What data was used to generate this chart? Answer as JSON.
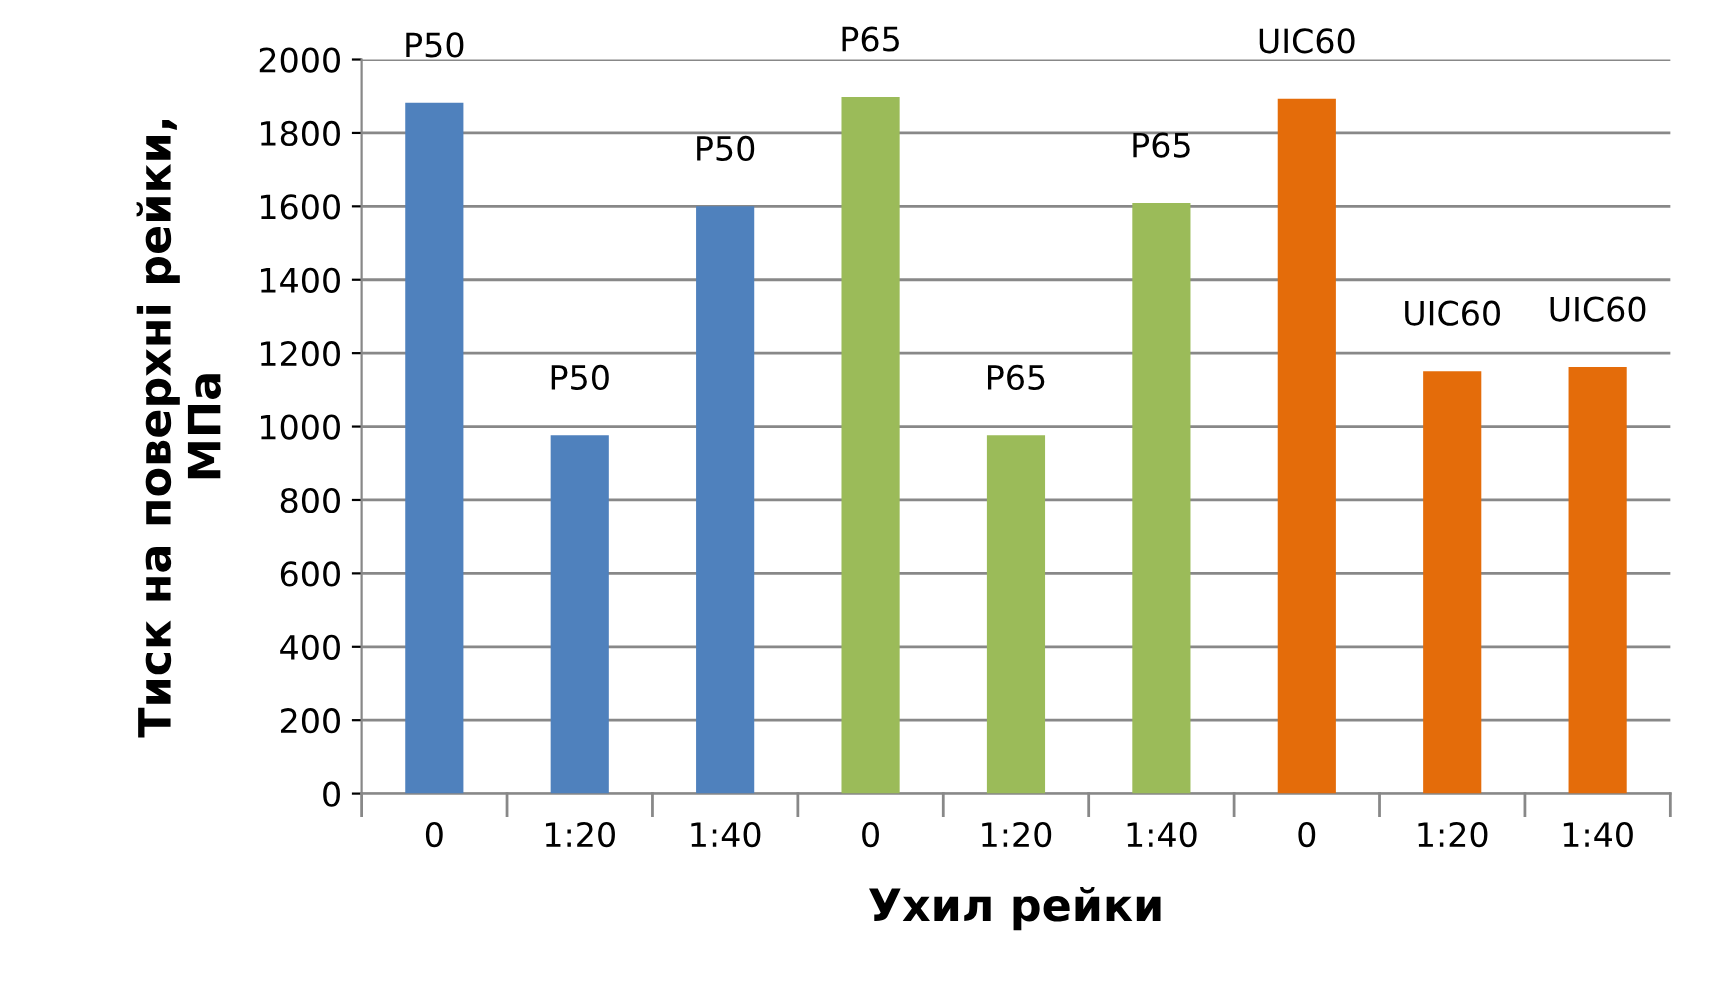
{
  "chart_data": {
    "type": "bar",
    "xlabel": "Ухил рейки",
    "ylabel": "Тиск на поверхні рейки,\nМПа",
    "categories": [
      "0",
      "1:20",
      "1:40",
      "0",
      "1:20",
      "1:40",
      "0",
      "1:20",
      "1:40"
    ],
    "values": [
      1882,
      976,
      1600,
      1898,
      976,
      1609,
      1893,
      1151,
      1162
    ],
    "colors": [
      "#4f81bd",
      "#4f81bd",
      "#4f81bd",
      "#9bbb59",
      "#9bbb59",
      "#9bbb59",
      "#e46c0a",
      "#e46c0a",
      "#e46c0a"
    ],
    "value_labels": [
      "P50",
      "P50",
      "P50",
      "P65",
      "P65",
      "P65",
      "UIC60",
      "UIC60",
      "UIC60"
    ],
    "ylim": [
      0,
      2000
    ],
    "yticks": [
      0,
      200,
      400,
      600,
      800,
      1000,
      1200,
      1400,
      1600,
      1800,
      2000
    ],
    "grid": "y"
  }
}
